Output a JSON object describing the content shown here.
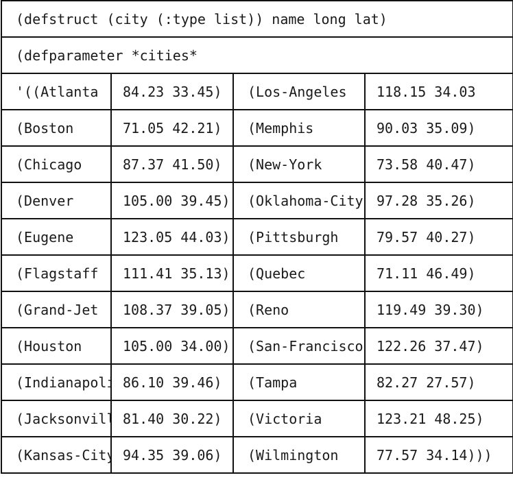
{
  "header": {
    "defstruct_line": "(defstruct (city (:type list)) name long lat)",
    "defparameter_line": "(defparameter *cities*"
  },
  "rows": [
    {
      "left_name": "'((Atlanta",
      "left_coords": "84.23 33.45)",
      "right_name": "(Los-Angeles",
      "right_coords": "118.15 34.03"
    },
    {
      "left_name": "(Boston",
      "left_coords": "71.05 42.21)",
      "right_name": "(Memphis",
      "right_coords": "90.03 35.09)"
    },
    {
      "left_name": "(Chicago",
      "left_coords": "87.37 41.50)",
      "right_name": "(New-York",
      "right_coords": "73.58 40.47)"
    },
    {
      "left_name": "(Denver",
      "left_coords": "105.00 39.45)",
      "right_name": "(Oklahoma-City",
      "right_coords": "97.28 35.26)"
    },
    {
      "left_name": "(Eugene",
      "left_coords": "123.05 44.03)",
      "right_name": "(Pittsburgh",
      "right_coords": "79.57 40.27)"
    },
    {
      "left_name": "(Flagstaff",
      "left_coords": "111.41 35.13)",
      "right_name": "(Quebec",
      "right_coords": "71.11 46.49)"
    },
    {
      "left_name": "(Grand-Jet",
      "left_coords": "108.37 39.05)",
      "right_name": "(Reno",
      "right_coords": "119.49 39.30)"
    },
    {
      "left_name": "(Houston",
      "left_coords": "105.00 34.00)",
      "right_name": "(San-Francisco",
      "right_coords": "122.26 37.47)"
    },
    {
      "left_name": "(Indianapolis",
      "left_coords": "86.10 39.46)",
      "right_name": "(Tampa",
      "right_coords": "82.27 27.57)"
    },
    {
      "left_name": "(Jacksonville",
      "left_coords": "81.40 30.22)",
      "right_name": "(Victoria",
      "right_coords": "123.21 48.25)"
    },
    {
      "left_name": "(Kansas-City",
      "left_coords": "94.35 39.06)",
      "right_name": "(Wilmington",
      "right_coords": "77.57 34.14)))"
    }
  ]
}
